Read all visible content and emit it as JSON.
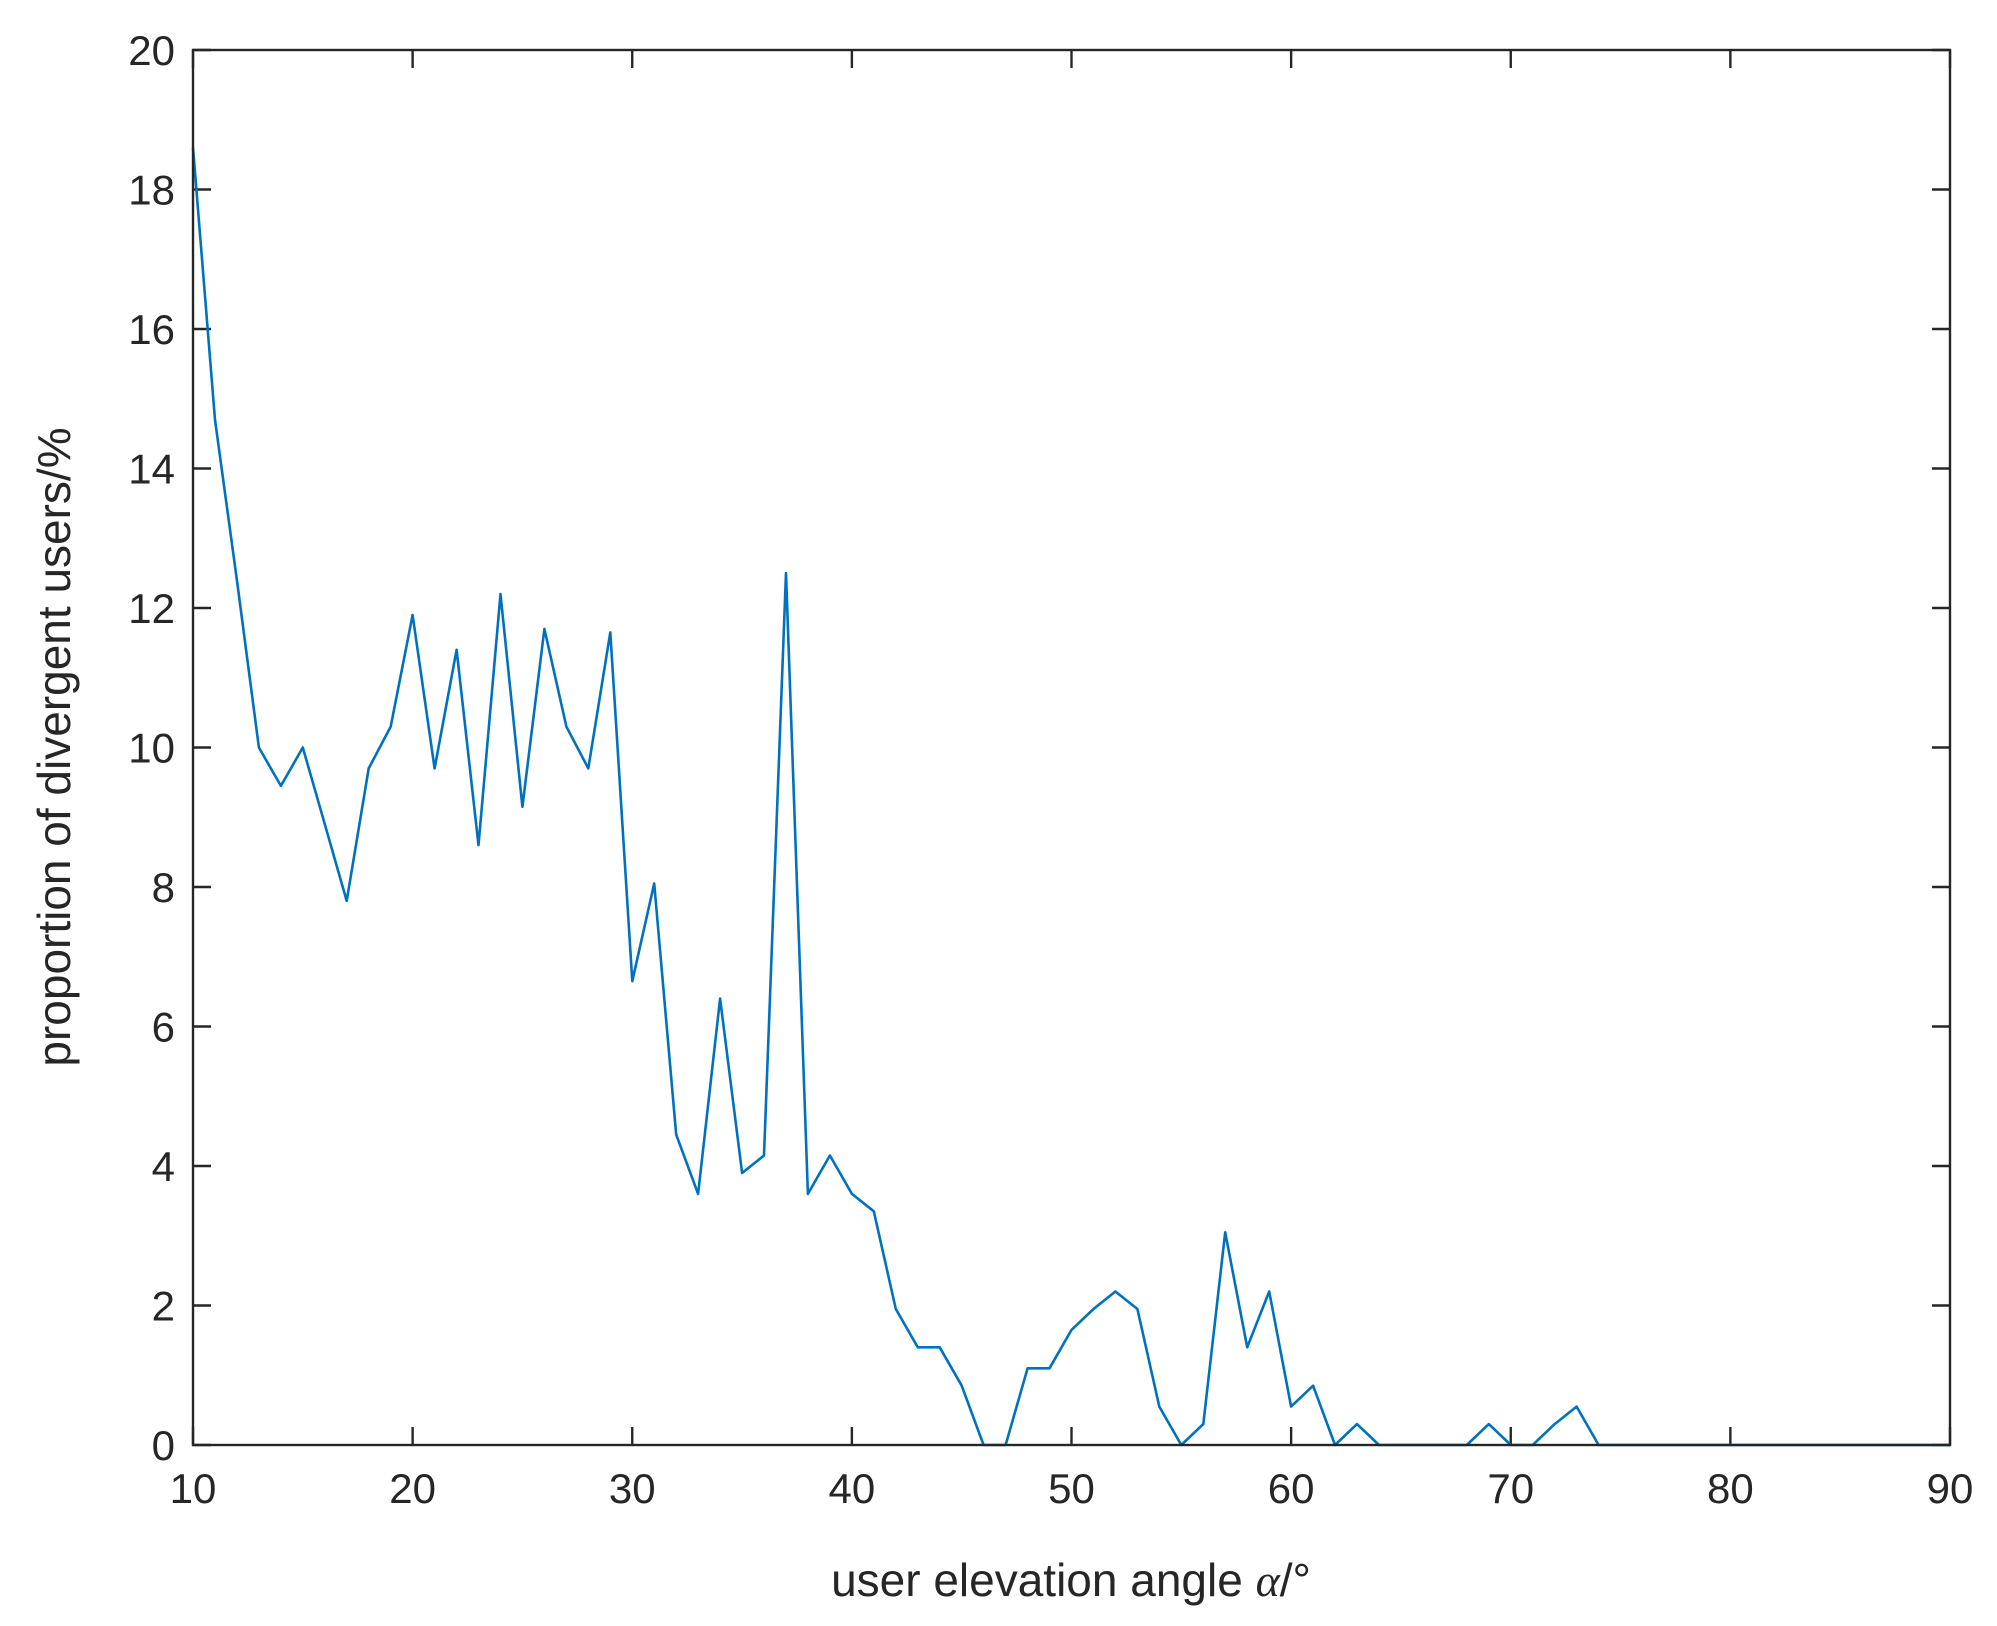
{
  "chart_data": {
    "type": "line",
    "xlabel": "user elevation angle",
    "xlabel_symbol": "α",
    "xlabel_unit": "/°",
    "ylabel": "proportion of divergent users/%",
    "xlim": [
      10,
      90
    ],
    "ylim": [
      0,
      20
    ],
    "xticks": [
      10,
      20,
      30,
      40,
      50,
      60,
      70,
      80,
      90
    ],
    "yticks": [
      0,
      2,
      4,
      6,
      8,
      10,
      12,
      14,
      16,
      18,
      20
    ],
    "grid": false,
    "line_color": "#0072BD",
    "axis_color": "#262626",
    "series": [
      {
        "x": [
          10,
          11,
          12,
          13,
          14,
          15,
          16,
          17,
          18,
          19,
          20,
          21,
          22,
          23,
          24,
          25,
          26,
          27,
          28,
          29,
          30,
          31,
          32,
          33,
          34,
          35,
          36,
          37,
          38,
          39,
          40,
          41,
          42,
          43,
          44,
          45,
          46,
          47,
          48,
          49,
          50,
          51,
          52,
          53,
          54,
          55,
          56,
          57,
          58,
          59,
          60,
          61,
          62,
          63,
          64,
          65,
          66,
          67,
          68,
          69,
          70,
          71,
          72,
          73,
          74,
          75,
          76,
          77,
          78,
          79,
          80,
          81,
          82,
          83,
          84,
          85,
          86,
          87,
          88,
          89,
          90
        ],
        "y": [
          18.6,
          14.7,
          12.4,
          10.0,
          9.45,
          10.0,
          8.9,
          7.8,
          9.7,
          10.3,
          11.9,
          9.7,
          11.4,
          8.6,
          12.2,
          9.15,
          11.7,
          10.3,
          9.7,
          11.65,
          6.65,
          8.05,
          4.45,
          3.6,
          6.4,
          3.9,
          4.15,
          12.5,
          3.6,
          4.15,
          3.6,
          3.35,
          1.95,
          1.4,
          1.4,
          0.85,
          0.0,
          0.0,
          1.1,
          1.1,
          1.65,
          1.95,
          2.2,
          1.95,
          0.55,
          0.0,
          0.3,
          3.05,
          1.4,
          2.2,
          0.55,
          0.85,
          0.0,
          0.3,
          0.0,
          0.0,
          0.0,
          0.0,
          0.0,
          0.3,
          0.0,
          0.0,
          0.3,
          0.55,
          0.0,
          0.0,
          0.0,
          0.0,
          0.0,
          0.0,
          0.0,
          0.0,
          0.0,
          0.0,
          0.0,
          0.0,
          0.0,
          0.0,
          0.0,
          0.0,
          0.0
        ]
      }
    ]
  }
}
